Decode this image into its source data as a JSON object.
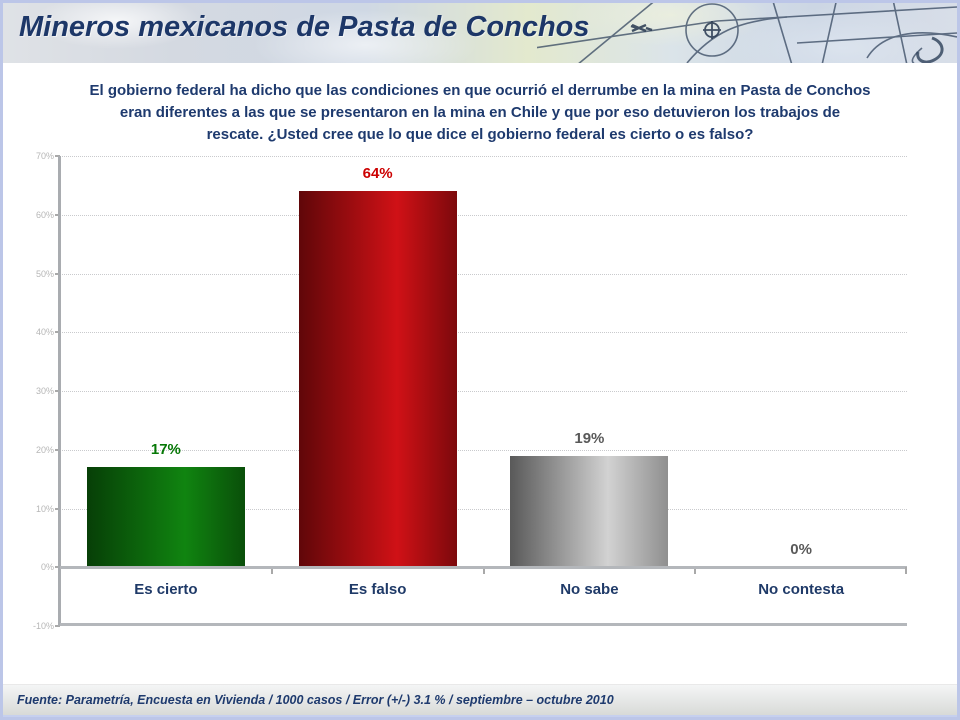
{
  "header": {
    "title": "Mineros mexicanos de Pasta de Conchos"
  },
  "question": {
    "lines": [
      "El gobierno federal ha dicho que las condiciones en que ocurrió el derrumbe en la mina en Pasta de Conchos",
      "eran diferentes a las que se presentaron en la mina en Chile y que por eso detuvieron los trabajos de",
      "rescate. ¿Usted cree que lo que dice el gobierno federal es cierto o es falso?"
    ]
  },
  "chart_data": {
    "type": "bar",
    "title": "",
    "xlabel": "",
    "ylabel": "",
    "categories": [
      "Es cierto",
      "Es falso",
      "No sabe",
      "No contesta"
    ],
    "values": [
      17,
      64,
      19,
      0
    ],
    "value_labels": [
      "17%",
      "64%",
      "19%",
      "0%"
    ],
    "value_label_colors": [
      "#067806",
      "#cc0000",
      "#595959",
      "#595959"
    ],
    "bar_gradients": [
      [
        "#073f07",
        "#108410",
        "#0a4f0a"
      ],
      [
        "#600709",
        "#d01116",
        "#7c090c"
      ],
      [
        "#595959",
        "#d2d2d2",
        "#8f8f8f"
      ],
      null
    ],
    "ylim": [
      -10,
      70
    ],
    "yticks": [
      {
        "label": "70%",
        "value": 70
      },
      {
        "label": "60%",
        "value": 60
      },
      {
        "label": "50%",
        "value": 50
      },
      {
        "label": "40%",
        "value": 40
      },
      {
        "label": "30%",
        "value": 30
      },
      {
        "label": "20%",
        "value": 20
      },
      {
        "label": "10%",
        "value": 10
      },
      {
        "label": "0%",
        "value": 0
      },
      {
        "label": "-10%",
        "value": -10
      }
    ],
    "grid": "horizontal dotted, solid baseline at 0% and -10%",
    "legend": "none",
    "category_label_color": "#1f3a68"
  },
  "footer": {
    "source": "Fuente: Parametría, Encuesta en Vivienda / 1000 casos / Error (+/-) 3.1 % / septiembre – octubre 2010"
  },
  "colors": {
    "accent_navy": "#1e3a6e",
    "page_border": "#bcc6e8",
    "axis_gray": "#a9acb0",
    "baseline_gray": "#b4b7bb",
    "tick_label_gray": "#b6b6b6"
  }
}
